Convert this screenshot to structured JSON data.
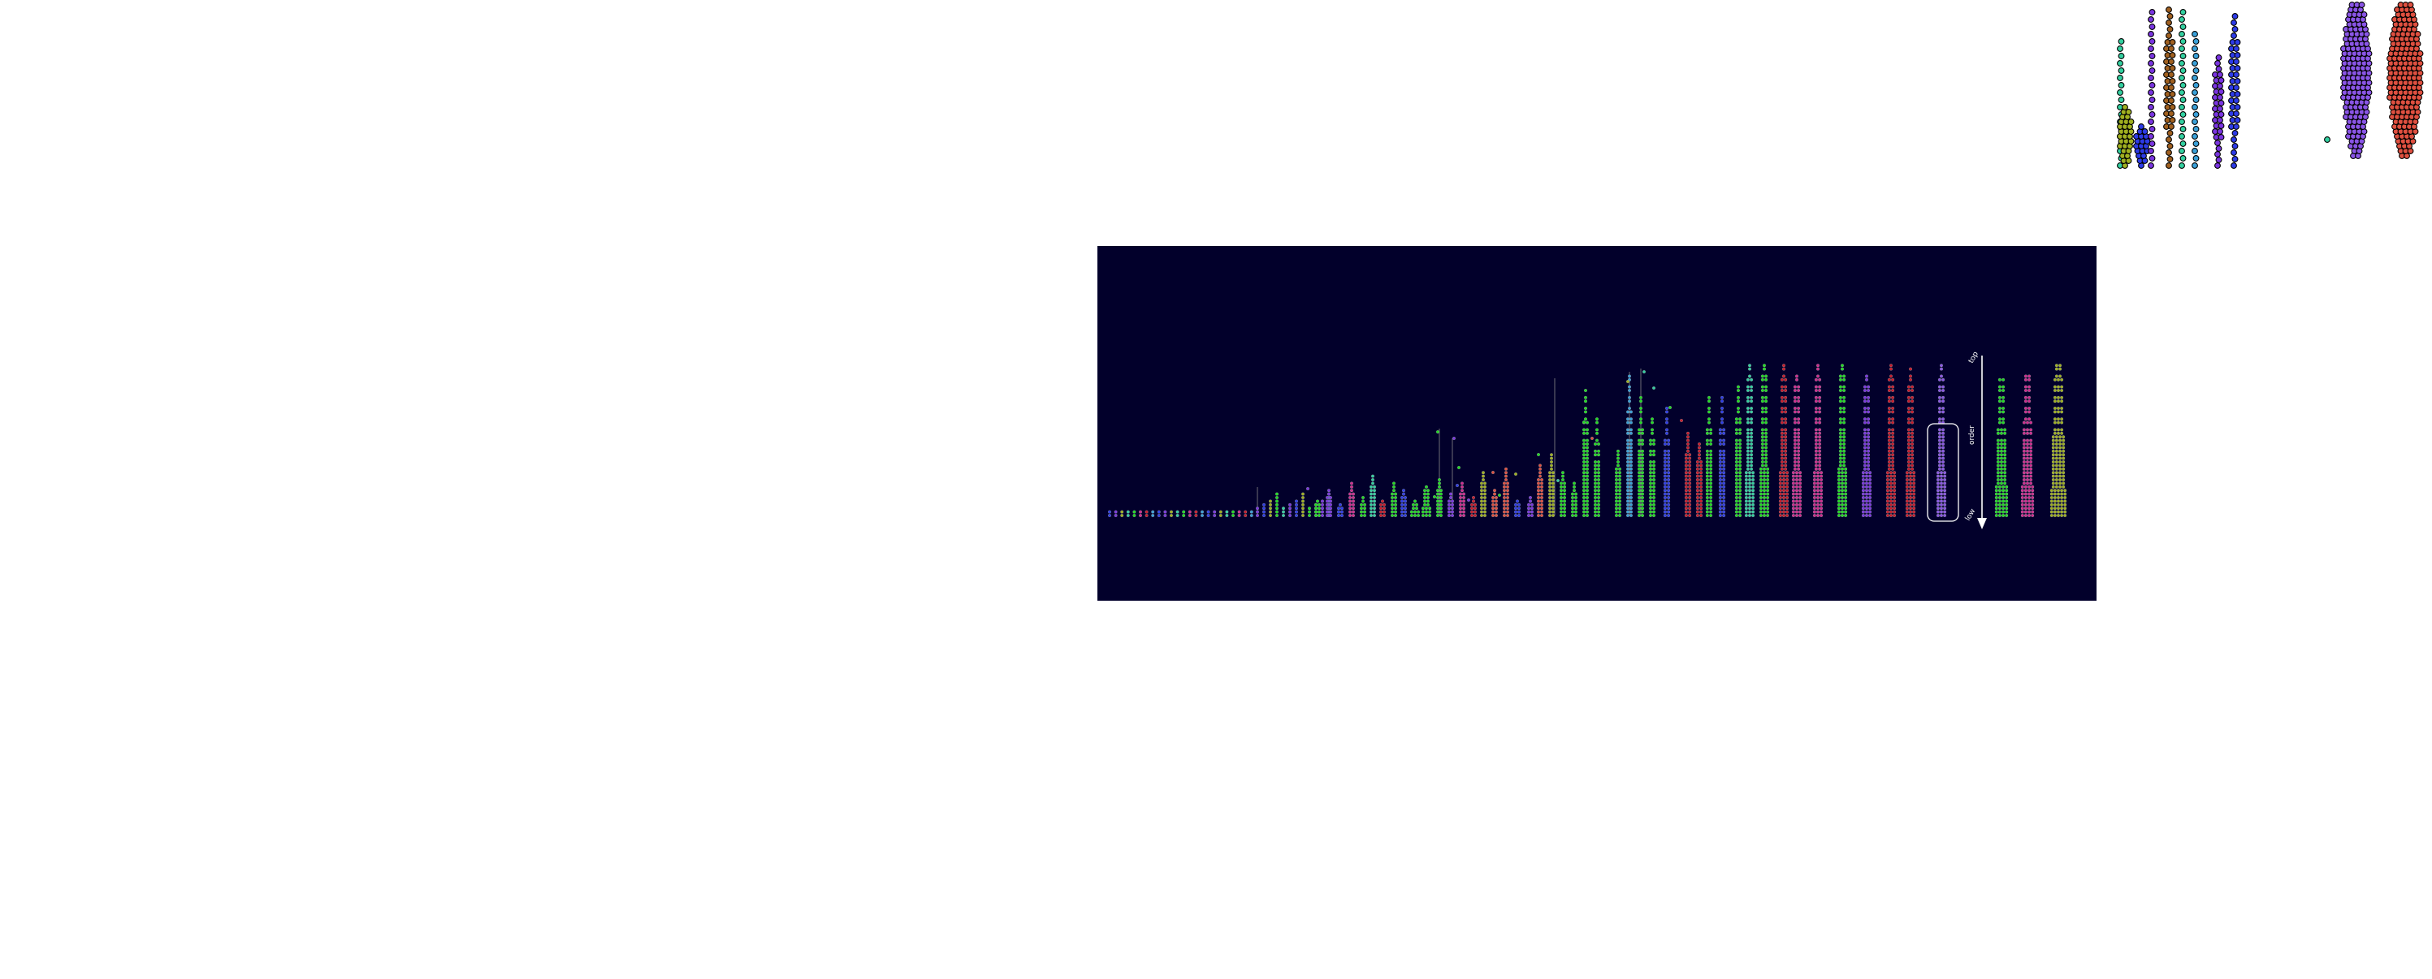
{
  "figure": {
    "panel_background": "#02002b",
    "page_background": "#ffffff",
    "stroke_color": "#000000",
    "panel_line_color": "#ffffff"
  },
  "annotations": {
    "top_label": "top",
    "middle_label": "order",
    "bottom_label": "low"
  },
  "palette": [
    "#22dd22",
    "#2d3be8",
    "#7a35e0",
    "#d02a8f",
    "#c81a2a",
    "#33d0a0",
    "#a0b020",
    "#3aa0d8",
    "#a06020",
    "#e05040",
    "#8a55e6"
  ]
}
